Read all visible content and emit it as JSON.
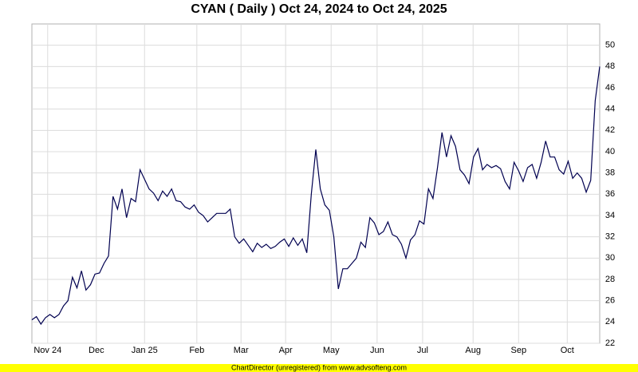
{
  "chart_data": {
    "type": "line",
    "title": "CYAN ( Daily ) Oct 24, 2024 to Oct 24, 2025",
    "footer": "ChartDirector (unregistered) from www.advsofteng.com",
    "series": [
      {
        "color": "#000050",
        "values": [
          24.2,
          24.5,
          23.8,
          24.4,
          24.7,
          24.4,
          24.7,
          25.5,
          26,
          28.2,
          27.2,
          28.8,
          27,
          27.5,
          28.5,
          28.6,
          29.5,
          30.2,
          35.8,
          34.6,
          36.5,
          33.8,
          35.6,
          35.3,
          38.3,
          37.4,
          36.5,
          36.1,
          35.4,
          36.3,
          35.8,
          36.5,
          35.4,
          35.3,
          34.8,
          34.6,
          35,
          34.3,
          34,
          33.4,
          33.8,
          34.2,
          34.2,
          34.2,
          34.6,
          32,
          31.4,
          31.8,
          31.2,
          30.6,
          31.4,
          31,
          31.3,
          30.9,
          31.1,
          31.5,
          31.8,
          31.1,
          31.9,
          31.2,
          31.8,
          30.5,
          36,
          40.2,
          36.5,
          35,
          34.5,
          32,
          27.1,
          29,
          29,
          29.5,
          30,
          31.5,
          31,
          33.8,
          33.3,
          32.2,
          32.5,
          33.4,
          32.2,
          32,
          31.3,
          30,
          31.7,
          32.2,
          33.5,
          33.2,
          36.5,
          35.6,
          38.5,
          41.8,
          39.5,
          41.5,
          40.5,
          38.3,
          37.8,
          37,
          39.5,
          40.3,
          38.3,
          38.8,
          38.5,
          38.7,
          38.4,
          37.2,
          36.5,
          39,
          38.2,
          37.2,
          38.5,
          38.8,
          37.5,
          39,
          41,
          39.5,
          39.5,
          38.3,
          37.9,
          39.1,
          37.5,
          38,
          37.5,
          36.2,
          37.3,
          44.8,
          48
        ]
      }
    ],
    "xlim": [
      0,
      126
    ],
    "xticks": [
      {
        "value": 3.5,
        "label": "Nov 24"
      },
      {
        "value": 14.3,
        "label": "Dec"
      },
      {
        "value": 25,
        "label": "Jan 25"
      },
      {
        "value": 36.6,
        "label": "Feb"
      },
      {
        "value": 46.4,
        "label": "Mar"
      },
      {
        "value": 56.3,
        "label": "Apr"
      },
      {
        "value": 66.4,
        "label": "May"
      },
      {
        "value": 76.6,
        "label": "Jun"
      },
      {
        "value": 86.7,
        "label": "Jul"
      },
      {
        "value": 97.9,
        "label": "Aug"
      },
      {
        "value": 108,
        "label": "Sep"
      },
      {
        "value": 118.8,
        "label": "Oct"
      }
    ],
    "ylim": [
      22,
      52
    ],
    "yticks": [
      22,
      24,
      26,
      28,
      30,
      32,
      34,
      36,
      38,
      40,
      42,
      44,
      46,
      48,
      50
    ],
    "grid": true
  }
}
